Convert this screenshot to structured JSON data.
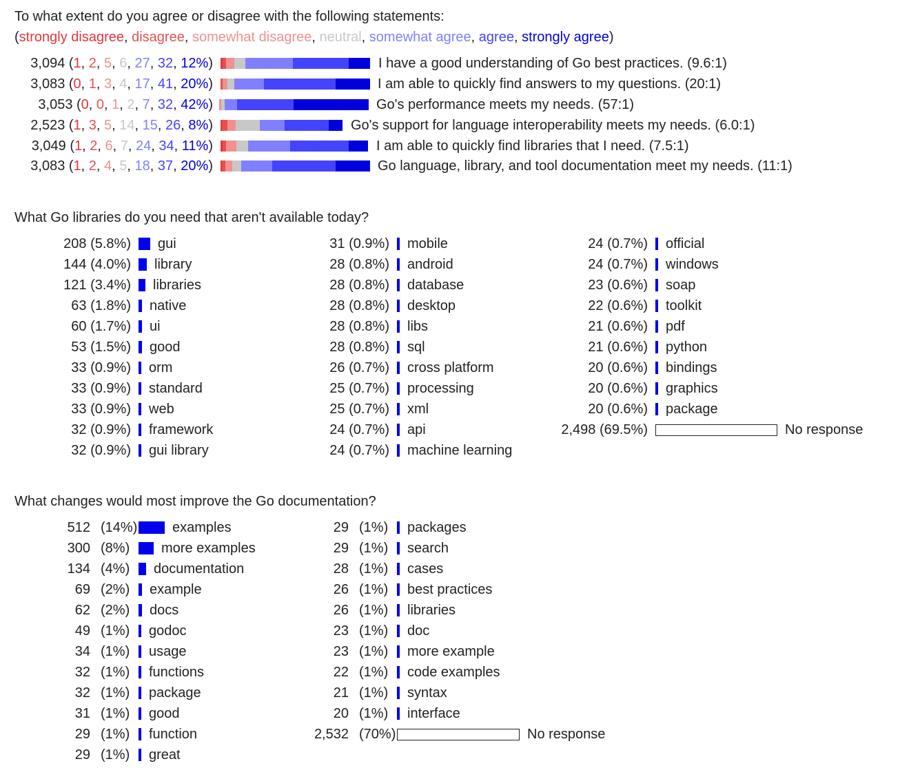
{
  "likert": {
    "question": "To what extent do you agree or disagree with the following statements:",
    "scale_open": "(",
    "scale_close": ")",
    "scale_sep": ", ",
    "scale": [
      "strongly disagree",
      "disagree",
      "somewhat disagree",
      "neutral",
      "somewhat agree",
      "agree",
      "strongly agree"
    ],
    "colors": [
      "#e8343c",
      "#e85050",
      "#f09090",
      "#c8c8c8",
      "#8080ff",
      "#4444ff",
      "#0000dd"
    ],
    "rows": [
      {
        "n": "3,094",
        "p": [
          "1",
          "2",
          "5",
          "6",
          "27",
          "32",
          "12%"
        ],
        "v": [
          1,
          2,
          5,
          6,
          27,
          32,
          12
        ],
        "statement": "I have a good understanding of Go best practices. (9.6:1)"
      },
      {
        "n": "3,083",
        "p": [
          "0",
          "1",
          "3",
          "4",
          "17",
          "41",
          "20%"
        ],
        "v": [
          0,
          1,
          3,
          4,
          17,
          41,
          20
        ],
        "statement": "I am able to quickly find answers to my questions. (20:1)"
      },
      {
        "n": "3,053",
        "p": [
          "0",
          "0",
          "1",
          "2",
          "7",
          "32",
          "42%"
        ],
        "v": [
          0,
          0,
          1,
          2,
          7,
          32,
          42
        ],
        "statement": "Go's performance meets my needs. (57:1)"
      },
      {
        "n": "2,523",
        "p": [
          "1",
          "3",
          "5",
          "14",
          "15",
          "26",
          "8%"
        ],
        "v": [
          1,
          3,
          5,
          14,
          15,
          26,
          8
        ],
        "statement": "Go's support for language interoperability meets my needs. (6.0:1)"
      },
      {
        "n": "3,049",
        "p": [
          "1",
          "2",
          "6",
          "7",
          "24",
          "34",
          "11%"
        ],
        "v": [
          1,
          2,
          6,
          7,
          24,
          34,
          11
        ],
        "statement": "I am able to quickly find libraries that I need. (7.5:1)"
      },
      {
        "n": "3,083",
        "p": [
          "1",
          "2",
          "4",
          "5",
          "18",
          "37",
          "20%"
        ],
        "v": [
          1,
          2,
          4,
          5,
          18,
          37,
          20
        ],
        "statement": "Go language, library, and tool documentation meet my needs. (11:1)"
      }
    ]
  },
  "libraries": {
    "question": "What Go libraries do you need that aren't available today?",
    "columns": [
      [
        {
          "count": "208",
          "pct": "(5.8%)",
          "value": 5.8,
          "label": "gui"
        },
        {
          "count": "144",
          "pct": "(4.0%)",
          "value": 4.0,
          "label": "library"
        },
        {
          "count": "121",
          "pct": "(3.4%)",
          "value": 3.4,
          "label": "libraries"
        },
        {
          "count": "63",
          "pct": "(1.8%)",
          "value": 1.8,
          "label": "native"
        },
        {
          "count": "60",
          "pct": "(1.7%)",
          "value": 1.7,
          "label": "ui"
        },
        {
          "count": "53",
          "pct": "(1.5%)",
          "value": 1.5,
          "label": "good"
        },
        {
          "count": "33",
          "pct": "(0.9%)",
          "value": 0.9,
          "label": "orm"
        },
        {
          "count": "33",
          "pct": "(0.9%)",
          "value": 0.9,
          "label": "standard"
        },
        {
          "count": "33",
          "pct": "(0.9%)",
          "value": 0.9,
          "label": "web"
        },
        {
          "count": "32",
          "pct": "(0.9%)",
          "value": 0.9,
          "label": "framework"
        },
        {
          "count": "32",
          "pct": "(0.9%)",
          "value": 0.9,
          "label": "gui library"
        }
      ],
      [
        {
          "count": "31",
          "pct": "(0.9%)",
          "value": 0.9,
          "label": "mobile"
        },
        {
          "count": "28",
          "pct": "(0.8%)",
          "value": 0.8,
          "label": "android"
        },
        {
          "count": "28",
          "pct": "(0.8%)",
          "value": 0.8,
          "label": "database"
        },
        {
          "count": "28",
          "pct": "(0.8%)",
          "value": 0.8,
          "label": "desktop"
        },
        {
          "count": "28",
          "pct": "(0.8%)",
          "value": 0.8,
          "label": "libs"
        },
        {
          "count": "28",
          "pct": "(0.8%)",
          "value": 0.8,
          "label": "sql"
        },
        {
          "count": "26",
          "pct": "(0.7%)",
          "value": 0.7,
          "label": "cross platform"
        },
        {
          "count": "25",
          "pct": "(0.7%)",
          "value": 0.7,
          "label": "processing"
        },
        {
          "count": "25",
          "pct": "(0.7%)",
          "value": 0.7,
          "label": "xml"
        },
        {
          "count": "24",
          "pct": "(0.7%)",
          "value": 0.7,
          "label": "api"
        },
        {
          "count": "24",
          "pct": "(0.7%)",
          "value": 0.7,
          "label": "machine learning"
        }
      ],
      [
        {
          "count": "24",
          "pct": "(0.7%)",
          "value": 0.7,
          "label": "official"
        },
        {
          "count": "24",
          "pct": "(0.7%)",
          "value": 0.7,
          "label": "windows"
        },
        {
          "count": "23",
          "pct": "(0.6%)",
          "value": 0.6,
          "label": "soap"
        },
        {
          "count": "22",
          "pct": "(0.6%)",
          "value": 0.6,
          "label": "toolkit"
        },
        {
          "count": "21",
          "pct": "(0.6%)",
          "value": 0.6,
          "label": "pdf"
        },
        {
          "count": "21",
          "pct": "(0.6%)",
          "value": 0.6,
          "label": "python"
        },
        {
          "count": "20",
          "pct": "(0.6%)",
          "value": 0.6,
          "label": "bindings"
        },
        {
          "count": "20",
          "pct": "(0.6%)",
          "value": 0.6,
          "label": "graphics"
        },
        {
          "count": "20",
          "pct": "(0.6%)",
          "value": 0.6,
          "label": "package"
        },
        {
          "count": "2,498",
          "pct": "(69.5%)",
          "value": 69.5,
          "label": "No response",
          "empty": true
        }
      ]
    ]
  },
  "docs": {
    "question": "What changes would most improve the Go documentation?",
    "columns": [
      [
        {
          "count": "512",
          "pct": "(14%)",
          "value": 14,
          "label": "examples"
        },
        {
          "count": "300",
          "pct": "(8%)",
          "value": 8,
          "label": "more examples"
        },
        {
          "count": "134",
          "pct": "(4%)",
          "value": 4,
          "label": "documentation"
        },
        {
          "count": "69",
          "pct": "(2%)",
          "value": 2,
          "label": "example"
        },
        {
          "count": "62",
          "pct": "(2%)",
          "value": 2,
          "label": "docs"
        },
        {
          "count": "49",
          "pct": "(1%)",
          "value": 1,
          "label": "godoc"
        },
        {
          "count": "34",
          "pct": "(1%)",
          "value": 1,
          "label": "usage"
        },
        {
          "count": "32",
          "pct": "(1%)",
          "value": 1,
          "label": "functions"
        },
        {
          "count": "32",
          "pct": "(1%)",
          "value": 1,
          "label": "package"
        },
        {
          "count": "31",
          "pct": "(1%)",
          "value": 1,
          "label": "good"
        },
        {
          "count": "29",
          "pct": "(1%)",
          "value": 1,
          "label": "function"
        },
        {
          "count": "29",
          "pct": "(1%)",
          "value": 1,
          "label": "great"
        }
      ],
      [
        {
          "count": "29",
          "pct": "(1%)",
          "value": 1,
          "label": "packages"
        },
        {
          "count": "29",
          "pct": "(1%)",
          "value": 1,
          "label": "search"
        },
        {
          "count": "28",
          "pct": "(1%)",
          "value": 1,
          "label": "cases"
        },
        {
          "count": "26",
          "pct": "(1%)",
          "value": 1,
          "label": "best practices"
        },
        {
          "count": "26",
          "pct": "(1%)",
          "value": 1,
          "label": "libraries"
        },
        {
          "count": "23",
          "pct": "(1%)",
          "value": 1,
          "label": "doc"
        },
        {
          "count": "23",
          "pct": "(1%)",
          "value": 1,
          "label": "more example"
        },
        {
          "count": "22",
          "pct": "(1%)",
          "value": 1,
          "label": "code examples"
        },
        {
          "count": "21",
          "pct": "(1%)",
          "value": 1,
          "label": "syntax"
        },
        {
          "count": "20",
          "pct": "(1%)",
          "value": 1,
          "label": "interface"
        },
        {
          "count": "2,532",
          "pct": "(70%)",
          "value": 70,
          "label": "No response",
          "empty": true
        }
      ]
    ]
  },
  "chart_data": [
    {
      "type": "bar",
      "title": "To what extent do you agree or disagree with the following statements:",
      "categories": [
        "I have a good understanding of Go best practices. (9.6:1)",
        "I am able to quickly find answers to my questions. (20:1)",
        "Go's performance meets my needs. (57:1)",
        "Go's support for language interoperability meets my needs. (6.0:1)",
        "I am able to quickly find libraries that I need. (7.5:1)",
        "Go language, library, and tool documentation meet my needs. (11:1)"
      ],
      "series": [
        {
          "name": "strongly disagree",
          "values": [
            1,
            0,
            0,
            1,
            1,
            1
          ]
        },
        {
          "name": "disagree",
          "values": [
            2,
            1,
            0,
            3,
            2,
            2
          ]
        },
        {
          "name": "somewhat disagree",
          "values": [
            5,
            3,
            1,
            5,
            6,
            4
          ]
        },
        {
          "name": "neutral",
          "values": [
            6,
            4,
            2,
            14,
            7,
            5
          ]
        },
        {
          "name": "somewhat agree",
          "values": [
            27,
            17,
            7,
            15,
            24,
            18
          ]
        },
        {
          "name": "agree",
          "values": [
            32,
            41,
            32,
            26,
            34,
            37
          ]
        },
        {
          "name": "strongly agree",
          "values": [
            12,
            20,
            42,
            8,
            11,
            20
          ]
        }
      ],
      "n": [
        3094,
        3083,
        3053,
        2523,
        3049,
        3083
      ]
    },
    {
      "type": "bar",
      "title": "What Go libraries do you need that aren't available today?",
      "categories": [
        "gui",
        "library",
        "libraries",
        "native",
        "ui",
        "good",
        "orm",
        "standard",
        "web",
        "framework",
        "gui library",
        "mobile",
        "android",
        "database",
        "desktop",
        "libs",
        "sql",
        "cross platform",
        "processing",
        "xml",
        "api",
        "machine learning",
        "official",
        "windows",
        "soap",
        "toolkit",
        "pdf",
        "python",
        "bindings",
        "graphics",
        "package",
        "No response"
      ],
      "values": [
        208,
        144,
        121,
        63,
        60,
        53,
        33,
        33,
        33,
        32,
        32,
        31,
        28,
        28,
        28,
        28,
        28,
        26,
        25,
        25,
        24,
        24,
        24,
        24,
        23,
        22,
        21,
        21,
        20,
        20,
        20,
        2498
      ]
    },
    {
      "type": "bar",
      "title": "What changes would most improve the Go documentation?",
      "categories": [
        "examples",
        "more examples",
        "documentation",
        "example",
        "docs",
        "godoc",
        "usage",
        "functions",
        "package",
        "good",
        "function",
        "great",
        "packages",
        "search",
        "cases",
        "best practices",
        "libraries",
        "doc",
        "more example",
        "code examples",
        "syntax",
        "interface",
        "No response"
      ],
      "values": [
        512,
        300,
        134,
        69,
        62,
        49,
        34,
        32,
        32,
        31,
        29,
        29,
        29,
        29,
        28,
        26,
        26,
        23,
        23,
        22,
        21,
        20,
        2532
      ]
    }
  ]
}
